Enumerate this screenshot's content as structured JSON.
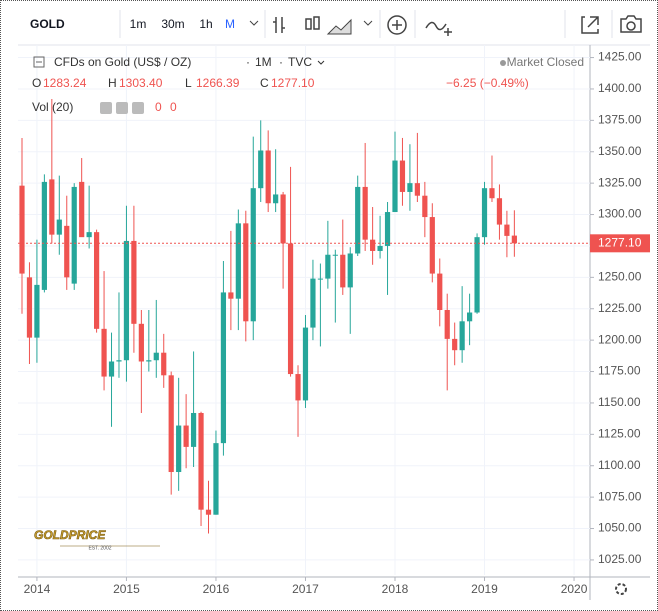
{
  "toolbar": {
    "symbol": "GOLD",
    "intervals": [
      "1m",
      "30m",
      "1h",
      "M"
    ]
  },
  "legend": {
    "title": "CFDs on Gold (US$ / OZ)",
    "interval": "1M",
    "source": "TVC",
    "status": "Market Closed",
    "ohlc": [
      {
        "prefix": "O",
        "value": "1283.24"
      },
      {
        "prefix": "H",
        "value": "1303.40"
      },
      {
        "prefix": "L",
        "value": "1266.39"
      },
      {
        "prefix": "C",
        "value": "1277.10"
      }
    ],
    "change": "−6.25 (−0.49%)",
    "volume": "Vol (20)",
    "volume_values": [
      "0",
      "0"
    ]
  },
  "watermark": {
    "name": "GOLDPRICE",
    "est": "EST. 2002"
  },
  "chart_data": {
    "type": "candlestick",
    "categories": [
      null,
      null,
      "2014",
      null,
      null,
      null,
      null,
      null,
      null,
      null,
      null,
      null,
      null,
      null,
      "2015",
      null,
      null,
      null,
      null,
      null,
      null,
      null,
      null,
      null,
      null,
      null,
      "2016",
      null,
      null,
      null,
      null,
      null,
      null,
      null,
      null,
      null,
      null,
      null,
      "2017",
      null,
      null,
      null,
      null,
      null,
      null,
      null,
      null,
      null,
      null,
      null,
      "2018",
      null,
      null,
      null,
      null,
      null,
      null,
      null,
      null,
      null,
      null,
      null,
      "2019",
      null,
      null,
      null,
      null,
      null,
      null,
      null,
      null,
      null,
      null,
      null,
      "2020"
    ],
    "open": [
      1323,
      1250,
      1202,
      1240,
      1328,
      1284,
      1291,
      1245,
      1326,
      1282,
      1286,
      1209,
      1171,
      1183,
      1184,
      1279,
      1213,
      1183,
      1184,
      1190,
      1172,
      1095,
      1132,
      1115,
      1142,
      1065,
      1061,
      1118,
      1238,
      1233,
      1293,
      1215,
      1321,
      1351,
      1309,
      1316,
      1277,
      1173,
      1152,
      1210,
      1249,
      1249,
      1268,
      1268,
      1242,
      1269,
      1322,
      1280,
      1271,
      1275,
      1302,
      1343,
      1318,
      1325,
      1315,
      1298,
      1253,
      1224,
      1201,
      1192,
      1215,
      1222,
      1282,
      1321,
      1313,
      1292,
      1283.24,
      null,
      null,
      null,
      null,
      null,
      null,
      null,
      null
    ],
    "high": [
      1361,
      1262,
      1280,
      1332,
      1392,
      1331,
      1315,
      1325,
      1345,
      1323,
      1288,
      1255,
      1206,
      1238,
      1307,
      1307,
      1224,
      1224,
      1232,
      1205,
      1175,
      1170,
      1157,
      1191,
      1143,
      1088,
      1128,
      1263,
      1287,
      1304,
      1303,
      1362,
      1375,
      1367,
      1352,
      1318,
      1338,
      1180,
      1220,
      1264,
      1261,
      1295,
      1272,
      1296,
      1274,
      1331,
      1357,
      1306,
      1299,
      1310,
      1366,
      1361,
      1356,
      1365,
      1326,
      1309,
      1265,
      1237,
      1214,
      1243,
      1237,
      1285,
      1326,
      1347,
      1324,
      1303,
      1303.4,
      null,
      null,
      null,
      null,
      null,
      null,
      null,
      null
    ],
    "low": [
      1221,
      1181,
      1182,
      1238,
      1277,
      1268,
      1240,
      1240,
      1283,
      1273,
      1206,
      1160,
      1131,
      1170,
      1167,
      1190,
      1142,
      1175,
      1170,
      1162,
      1077,
      1080,
      1098,
      1099,
      1052,
      1046,
      1061,
      1108,
      1208,
      1208,
      1199,
      1200,
      1310,
      1302,
      1302,
      1241,
      1171,
      1123,
      1146,
      1200,
      1195,
      1241,
      1214,
      1236,
      1205,
      1267,
      1271,
      1260,
      1265,
      1236,
      1302,
      1307,
      1303,
      1310,
      1282,
      1246,
      1211,
      1160,
      1180,
      1182,
      1196,
      1221,
      1276,
      1310,
      1280,
      1266,
      1266.39,
      null,
      null,
      null,
      null,
      null,
      null,
      null,
      null
    ],
    "close": [
      1253,
      1202,
      1244,
      1326,
      1284,
      1296,
      1250,
      1322,
      1282,
      1286,
      1209,
      1171,
      1183,
      1184,
      1279,
      1213,
      1183,
      1184,
      1190,
      1172,
      1095,
      1132,
      1115,
      1142,
      1065,
      1061,
      1118,
      1238,
      1233,
      1293,
      1215,
      1321,
      1351,
      1309,
      1316,
      1277,
      1173,
      1152,
      1210,
      1249,
      1249,
      1268,
      1268,
      1242,
      1269,
      1322,
      1280,
      1271,
      1275,
      1302,
      1343,
      1318,
      1325,
      1315,
      1298,
      1253,
      1224,
      1201,
      1192,
      1215,
      1222,
      1282,
      1321,
      1313,
      1292,
      1283,
      1277.1,
      null,
      null,
      null,
      null,
      null,
      null,
      null,
      null
    ],
    "up_color": "#26a69a",
    "down_color": "#ef5350",
    "last_price": {
      "value": 1277.1,
      "label": "1277.10"
    },
    "ylim": [
      1013,
      1435
    ],
    "yticks": [
      {
        "value": 1025,
        "label": "1025.00"
      },
      {
        "value": 1050,
        "label": "1050.00"
      },
      {
        "value": 1075,
        "label": "1075.00"
      },
      {
        "value": 1100,
        "label": "1100.00"
      },
      {
        "value": 1125,
        "label": "1125.00"
      },
      {
        "value": 1150,
        "label": "1150.00"
      },
      {
        "value": 1175,
        "label": "1175.00"
      },
      {
        "value": 1200,
        "label": "1200.00"
      },
      {
        "value": 1225,
        "label": "1225.00"
      },
      {
        "value": 1250,
        "label": "1250.00"
      },
      {
        "value": 1275,
        "label": "1275.00"
      },
      {
        "value": 1300,
        "label": "1300.00"
      },
      {
        "value": 1325,
        "label": "1325.00"
      },
      {
        "value": 1350,
        "label": "1350.00"
      },
      {
        "value": 1375,
        "label": "1375.00"
      },
      {
        "value": 1400,
        "label": "1400.00"
      },
      {
        "value": 1425,
        "label": "1425.00"
      }
    ],
    "grid": true
  }
}
